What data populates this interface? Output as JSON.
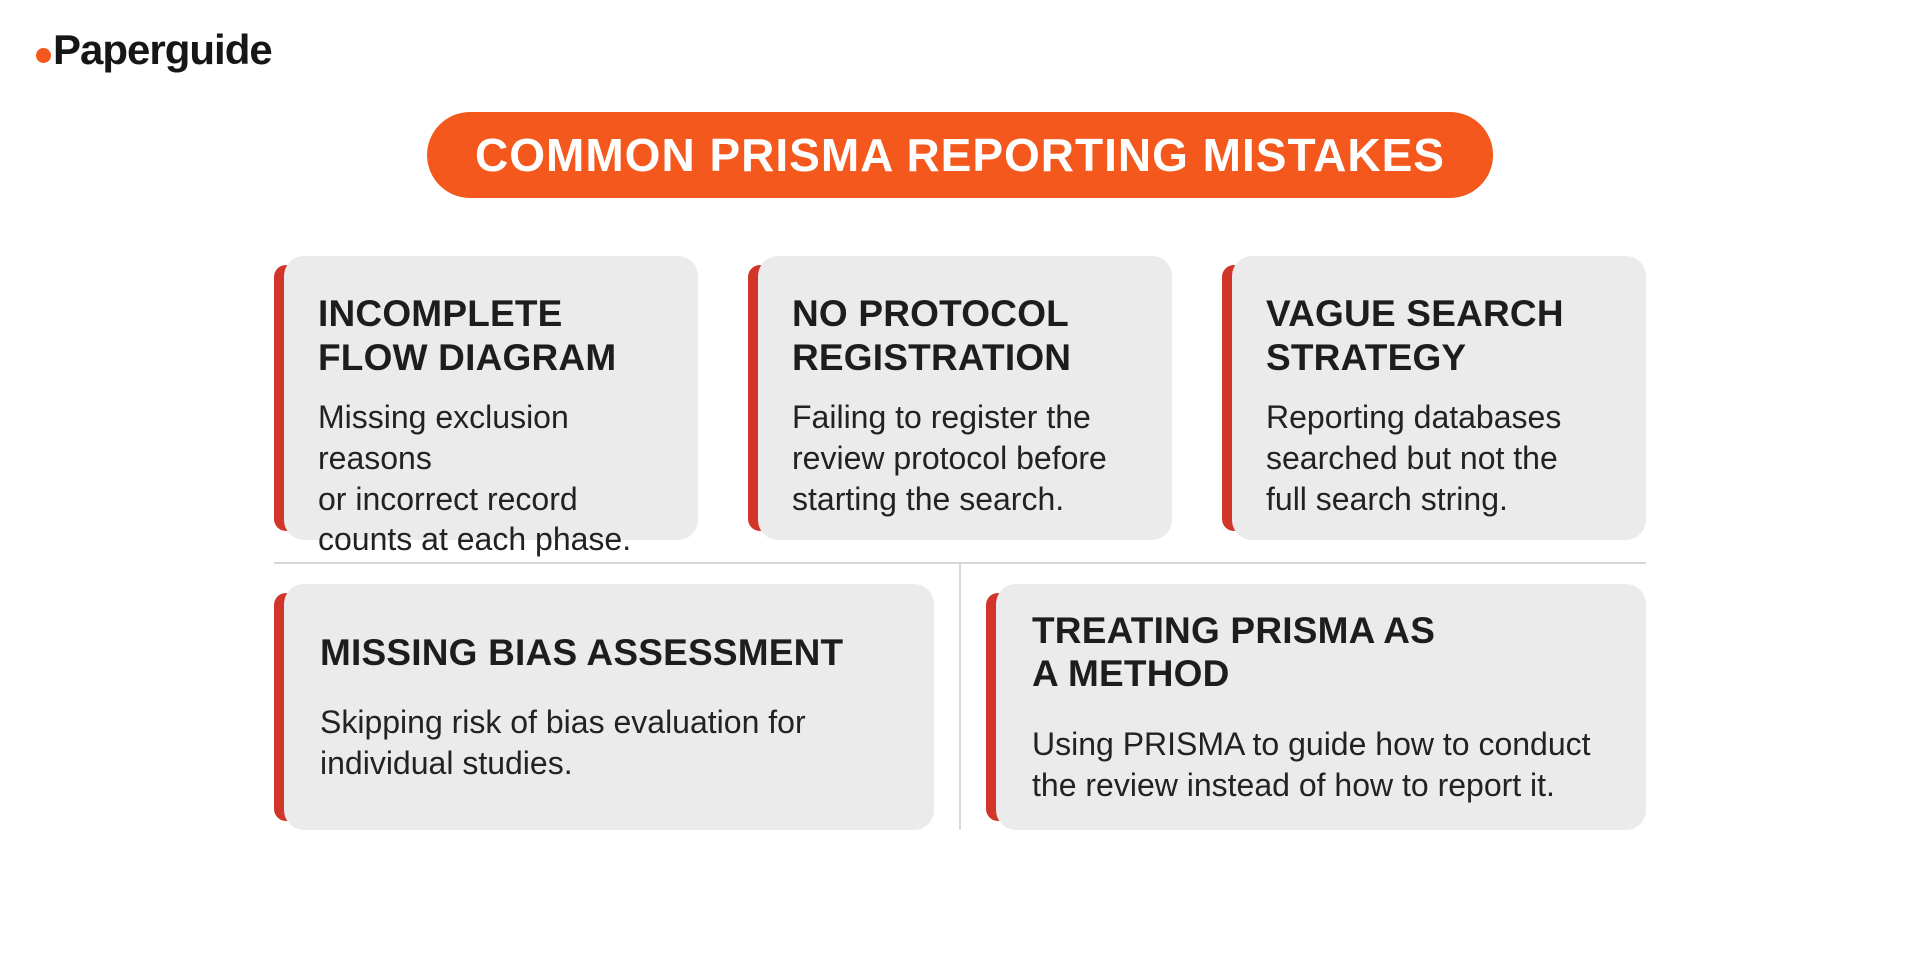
{
  "brand": {
    "name": "Paperguide"
  },
  "banner": {
    "title": "COMMON PRISMA REPORTING MISTAKES"
  },
  "cards": [
    {
      "title": "INCOMPLETE\nFLOW DIAGRAM",
      "body": "Missing exclusion reasons\nor incorrect record\ncounts at each phase."
    },
    {
      "title": "NO PROTOCOL\nREGISTRATION",
      "body": "Failing to register the\nreview protocol before\nstarting the search."
    },
    {
      "title": "VAGUE SEARCH\nSTRATEGY",
      "body": "Reporting databases\nsearched but not the\nfull search string."
    },
    {
      "title": "MISSING BIAS ASSESSMENT",
      "body": "Skipping risk of bias evaluation for\nindividual studies."
    },
    {
      "title": "TREATING PRISMA AS\nA METHOD",
      "body": "Using PRISMA to guide how to conduct\nthe review instead of how to report it."
    }
  ],
  "colors": {
    "accent_orange": "#F4581D",
    "accent_red": "#D2362B",
    "card_bg": "#EBEBEB",
    "text_dark": "#1D1D1D",
    "divider": "#D8D8D8"
  }
}
